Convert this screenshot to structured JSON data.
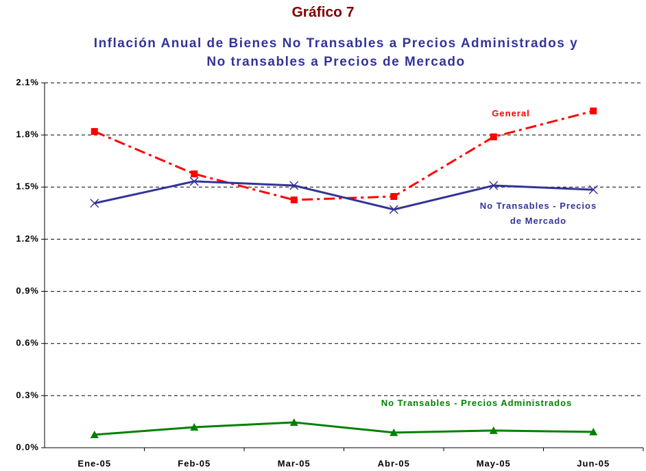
{
  "chart_data": {
    "type": "line",
    "title": "Gráfico 7",
    "subtitle": "Inflación Anual de Bienes No Transables a Precios Administrados y No transables a Precios de Mercado",
    "categories": [
      "Ene-05",
      "Feb-05",
      "Mar-05",
      "Abr-05",
      "May-05",
      "Jun-05"
    ],
    "series": [
      {
        "name": "General",
        "color": "#ff0000",
        "dash": true,
        "marker": "square",
        "values": [
          1.82,
          1.576,
          1.426,
          1.446,
          1.789,
          1.938
        ]
      },
      {
        "name": "No Transables - Precios de Mercado",
        "color": "#333399",
        "dash": false,
        "marker": "x",
        "values": [
          1.407,
          1.533,
          1.509,
          1.371,
          1.509,
          1.485
        ]
      },
      {
        "name": "No Transables - Precios Administrados",
        "color": "#008000",
        "dash": false,
        "marker": "triangle",
        "values": [
          0.075,
          0.118,
          0.146,
          0.087,
          0.099,
          0.091
        ]
      }
    ],
    "ylim": [
      0,
      2.1
    ],
    "yticks": [
      {
        "value": 0,
        "label": "0.0%"
      },
      {
        "value": 0.3,
        "label": "0.3%"
      },
      {
        "value": 0.6,
        "label": "0.6%"
      },
      {
        "value": 0.9,
        "label": "0.9%"
      },
      {
        "value": 1.2,
        "label": "1.2%"
      },
      {
        "value": 1.5,
        "label": "1.5%"
      },
      {
        "value": 1.8,
        "label": "1.8%"
      },
      {
        "value": 2.1,
        "label": "2.1%"
      }
    ],
    "grid": true
  }
}
